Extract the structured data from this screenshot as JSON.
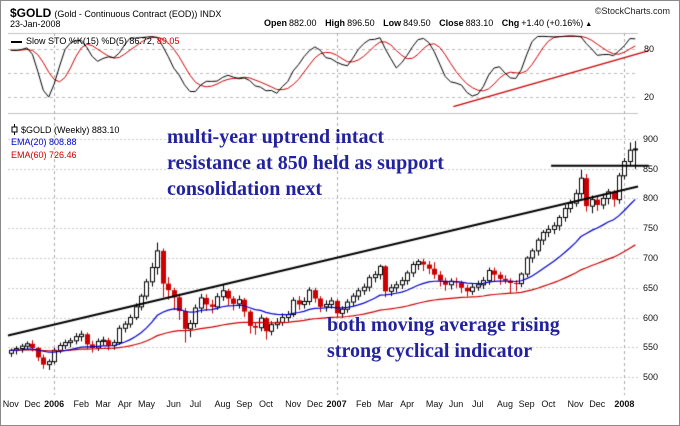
{
  "header": {
    "symbol": "$GOLD",
    "description": "(Gold - Continuous Contract (EOD)) INDX",
    "copyright": "©StockCharts.com",
    "date": "23-Jan-2008",
    "quote": {
      "open_label": "Open",
      "open": "882.00",
      "high_label": "High",
      "high": "896.50",
      "low_label": "Low",
      "low": "849.50",
      "close_label": "Close",
      "close": "883.10",
      "chg_label": "Chg",
      "chg": "+1.40 (+0.16%)",
      "direction_icon": "▲"
    }
  },
  "sto_panel": {
    "legend": {
      "label": "Slow STO %K(15) %D(5)",
      "k_value": "86.72,",
      "d_value": "89.05"
    }
  },
  "main_panel": {
    "legend": {
      "symbol_label": "$GOLD (Weekly)",
      "last": "883.10",
      "ema20_label": "EMA(20) 808.88",
      "ema60_label": "EMA(60) 726.46"
    },
    "annotations": {
      "upper": [
        "multi-year uptrend intact",
        "resistance at 850 held as support",
        "consolidation next"
      ],
      "lower": [
        "both moving average rising",
        "strong cyclical indicator"
      ]
    }
  },
  "chart_data": {
    "type": "candlestick",
    "title": "$GOLD (Gold - Continuous Contract (EOD)) INDX",
    "timeframe": "weekly",
    "start_date": "2005-11-07",
    "last_close": 883.1,
    "colors": {
      "up_candle": "#000000",
      "down_candle": "#cc0000",
      "ema20": "#0000cc",
      "ema60": "#cc0000",
      "sto_k": "#000000",
      "sto_d": "#cc0000",
      "annotation_text": "#22229e"
    },
    "price_axis": {
      "ticks": [
        900,
        850,
        800,
        750,
        700,
        650,
        600,
        550,
        500
      ],
      "ylim": [
        470,
        930
      ]
    },
    "indicator": {
      "name": "Slow STO",
      "k_period": 15,
      "k_smoothing": 3,
      "d_period": 5,
      "k_last": 86.72,
      "d_last": 89.05,
      "ylim": [
        0,
        100
      ],
      "yticks": [
        80,
        50,
        20
      ],
      "labeled_ticks": [
        80,
        20
      ]
    },
    "xaxis_labels": [
      "Nov",
      "Dec",
      "2006",
      "Feb",
      "Mar",
      "Apr",
      "May",
      "Jun",
      "Jul",
      "Aug",
      "Sep",
      "Oct",
      "Nov",
      "Dec",
      "2007",
      "Feb",
      "Mar",
      "Apr",
      "May",
      "Jun",
      "Jul",
      "Aug",
      "Sep",
      "Oct",
      "Nov",
      "Dec",
      "2008"
    ],
    "overlays": [
      {
        "name": "EMA",
        "period": 20,
        "last": 808.88,
        "color": "#0000cc"
      },
      {
        "name": "EMA",
        "period": 60,
        "last": 726.46,
        "color": "#cc0000"
      }
    ],
    "trendlines": [
      {
        "panel": "price",
        "points": [
          [
            0,
            570
          ],
          [
            116,
            820
          ]
        ],
        "color": "#000000",
        "width": 2
      },
      {
        "panel": "price",
        "points": [
          [
            100,
            855
          ],
          [
            118,
            855
          ]
        ],
        "color": "#000000",
        "width": 2
      },
      {
        "panel": "sto",
        "points": [
          [
            82,
            8
          ],
          [
            118,
            78
          ]
        ],
        "color": "#cc0000",
        "width": 1.5
      }
    ],
    "ohlc": [
      [
        540,
        548,
        534,
        545
      ],
      [
        545,
        552,
        538,
        548
      ],
      [
        548,
        556,
        541,
        552
      ],
      [
        552,
        560,
        546,
        556
      ],
      [
        556,
        562,
        543,
        549
      ],
      [
        549,
        551,
        527,
        533
      ],
      [
        533,
        538,
        514,
        521
      ],
      [
        521,
        530,
        512,
        526
      ],
      [
        526,
        549,
        522,
        545
      ],
      [
        545,
        558,
        540,
        553
      ],
      [
        553,
        563,
        547,
        558
      ],
      [
        558,
        566,
        550,
        561
      ],
      [
        561,
        574,
        555,
        568
      ],
      [
        568,
        578,
        560,
        572
      ],
      [
        572,
        575,
        547,
        555
      ],
      [
        555,
        561,
        541,
        549
      ],
      [
        549,
        565,
        544,
        560
      ],
      [
        560,
        568,
        553,
        562
      ],
      [
        562,
        566,
        545,
        553
      ],
      [
        553,
        563,
        546,
        558
      ],
      [
        558,
        587,
        554,
        582
      ],
      [
        582,
        594,
        575,
        589
      ],
      [
        589,
        605,
        583,
        600
      ],
      [
        600,
        624,
        596,
        618
      ],
      [
        618,
        640,
        612,
        636
      ],
      [
        636,
        665,
        630,
        660
      ],
      [
        660,
        692,
        652,
        684
      ],
      [
        684,
        726,
        672,
        712
      ],
      [
        712,
        716,
        634,
        657
      ],
      [
        657,
        668,
        630,
        646
      ],
      [
        646,
        650,
        613,
        634
      ],
      [
        634,
        640,
        596,
        611
      ],
      [
        611,
        616,
        558,
        581
      ],
      [
        581,
        596,
        567,
        590
      ],
      [
        590,
        622,
        583,
        616
      ],
      [
        616,
        640,
        608,
        633
      ],
      [
        633,
        639,
        611,
        622
      ],
      [
        622,
        630,
        607,
        618
      ],
      [
        618,
        641,
        613,
        635
      ],
      [
        635,
        655,
        628,
        645
      ],
      [
        645,
        648,
        621,
        632
      ],
      [
        632,
        636,
        612,
        623
      ],
      [
        623,
        637,
        615,
        630
      ],
      [
        630,
        633,
        601,
        610
      ],
      [
        610,
        613,
        573,
        586
      ],
      [
        586,
        592,
        571,
        583
      ],
      [
        583,
        605,
        577,
        599
      ],
      [
        599,
        601,
        563,
        577
      ],
      [
        577,
        594,
        570,
        588
      ],
      [
        588,
        599,
        581,
        592
      ],
      [
        592,
        607,
        586,
        600
      ],
      [
        600,
        611,
        593,
        605
      ],
      [
        605,
        634,
        601,
        629
      ],
      [
        629,
        636,
        613,
        622
      ],
      [
        622,
        634,
        615,
        627
      ],
      [
        627,
        651,
        621,
        646
      ],
      [
        646,
        650,
        625,
        632
      ],
      [
        632,
        636,
        609,
        618
      ],
      [
        618,
        629,
        610,
        622
      ],
      [
        622,
        634,
        615,
        628
      ],
      [
        628,
        631,
        600,
        607
      ],
      [
        607,
        619,
        599,
        614
      ],
      [
        614,
        631,
        608,
        626
      ],
      [
        626,
        641,
        619,
        636
      ],
      [
        636,
        650,
        629,
        645
      ],
      [
        645,
        657,
        638,
        651
      ],
      [
        651,
        672,
        644,
        667
      ],
      [
        667,
        678,
        659,
        672
      ],
      [
        672,
        689,
        664,
        686
      ],
      [
        686,
        688,
        634,
        644
      ],
      [
        644,
        656,
        636,
        650
      ],
      [
        650,
        661,
        642,
        655
      ],
      [
        655,
        668,
        648,
        662
      ],
      [
        662,
        679,
        655,
        675
      ],
      [
        675,
        694,
        668,
        689
      ],
      [
        689,
        698,
        680,
        694
      ],
      [
        694,
        699,
        678,
        689
      ],
      [
        689,
        695,
        673,
        682
      ],
      [
        682,
        693,
        665,
        672
      ],
      [
        672,
        678,
        652,
        662
      ],
      [
        662,
        667,
        645,
        655
      ],
      [
        655,
        666,
        647,
        661
      ],
      [
        661,
        667,
        650,
        659
      ],
      [
        659,
        662,
        641,
        650
      ],
      [
        650,
        655,
        635,
        644
      ],
      [
        644,
        657,
        638,
        651
      ],
      [
        651,
        662,
        645,
        655
      ],
      [
        655,
        668,
        648,
        662
      ],
      [
        662,
        684,
        655,
        679
      ],
      [
        679,
        684,
        661,
        672
      ],
      [
        672,
        677,
        655,
        665
      ],
      [
        665,
        671,
        657,
        662
      ],
      [
        662,
        666,
        640,
        658
      ],
      [
        658,
        663,
        644,
        657
      ],
      [
        657,
        676,
        651,
        673
      ],
      [
        673,
        703,
        668,
        700
      ],
      [
        700,
        716,
        692,
        712
      ],
      [
        712,
        734,
        704,
        730
      ],
      [
        730,
        747,
        722,
        743
      ],
      [
        743,
        755,
        735,
        748
      ],
      [
        748,
        760,
        740,
        754
      ],
      [
        754,
        772,
        746,
        768
      ],
      [
        768,
        789,
        761,
        783
      ],
      [
        783,
        798,
        776,
        792
      ],
      [
        792,
        815,
        786,
        808
      ],
      [
        808,
        848,
        800,
        834
      ],
      [
        834,
        841,
        778,
        787
      ],
      [
        787,
        805,
        775,
        798
      ],
      [
        798,
        803,
        779,
        789
      ],
      [
        789,
        808,
        782,
        800
      ],
      [
        800,
        816,
        790,
        811
      ],
      [
        811,
        814,
        786,
        798
      ],
      [
        798,
        843,
        791,
        838
      ],
      [
        838,
        868,
        832,
        862
      ],
      [
        862,
        894,
        856,
        881
      ],
      [
        882,
        896.5,
        849.5,
        883.1
      ]
    ]
  }
}
